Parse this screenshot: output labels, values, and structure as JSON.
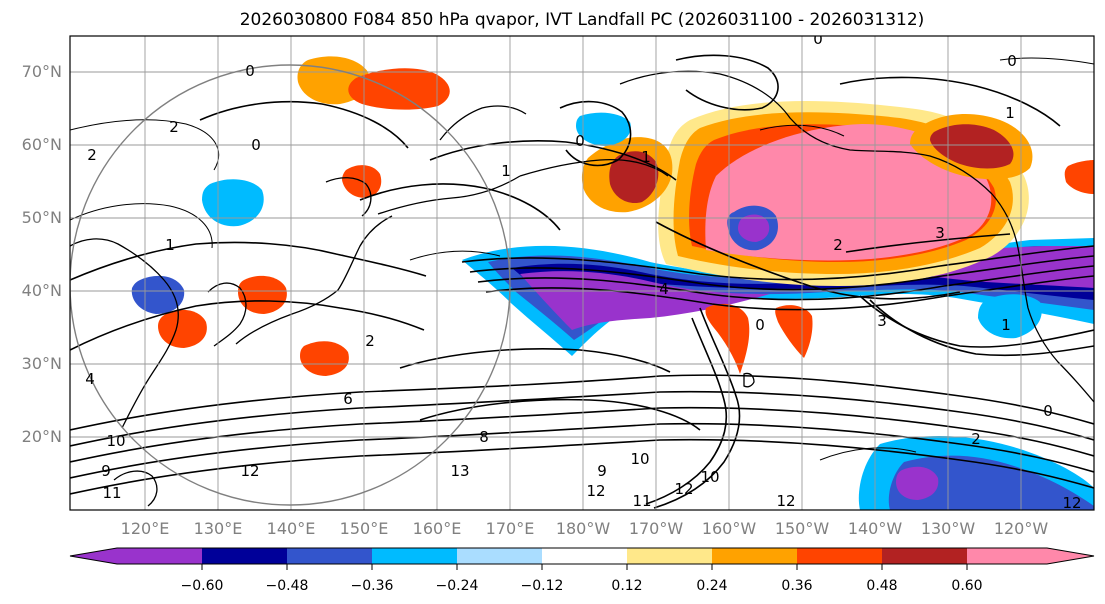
{
  "title": "2026030800 F084 850 hPa qvapor, IVT Landfall PC (2026031100 - 2026031312)",
  "map": {
    "lat_labels": [
      "70°N",
      "60°N",
      "50°N",
      "40°N",
      "30°N",
      "20°N"
    ],
    "lon_labels": [
      "120°E",
      "130°E",
      "140°E",
      "150°E",
      "160°E",
      "170°E",
      "180°W",
      "170°W",
      "160°W",
      "150°W",
      "140°W",
      "130°W",
      "120°W"
    ],
    "contour_labels": [
      "0",
      "0",
      "0",
      "0",
      "0",
      "0",
      "1",
      "1",
      "1",
      "1",
      "2",
      "2",
      "2",
      "2",
      "3",
      "3",
      "4",
      "4",
      "6",
      "8",
      "9",
      "9",
      "10",
      "10",
      "10",
      "11",
      "11",
      "12",
      "12",
      "12",
      "12",
      "12",
      "13",
      "2",
      "1",
      "0"
    ]
  },
  "colorbar": {
    "colors": [
      "#9933cc",
      "#000099",
      "#3355cc",
      "#00bbff",
      "#aaddff",
      "#ffffff",
      "#ffe88a",
      "#ffa200",
      "#ff4400",
      "#b22222",
      "#ff88aa"
    ],
    "tick_labels": [
      "−0.60",
      "−0.48",
      "−0.36",
      "−0.24",
      "−0.12",
      "0.12",
      "0.24",
      "0.36",
      "0.48",
      "0.60"
    ],
    "extend": "both"
  }
}
